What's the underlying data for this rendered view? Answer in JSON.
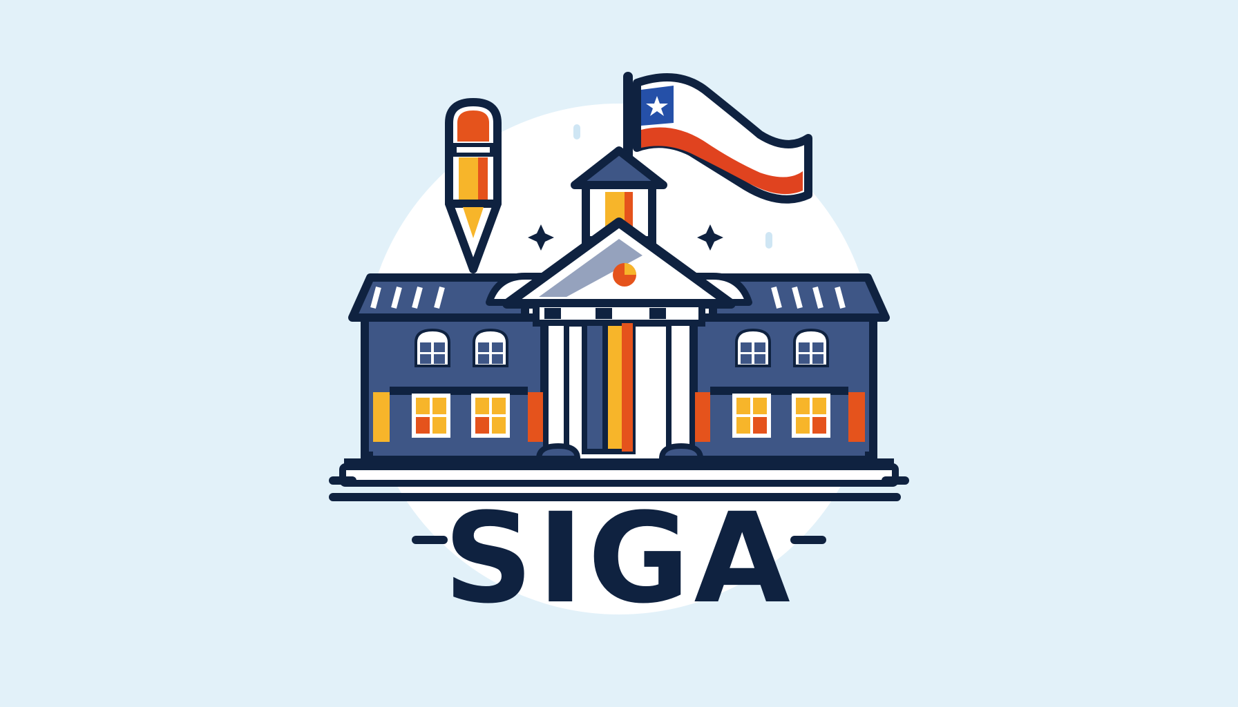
{
  "brand": {
    "name": "SIGA"
  },
  "colors": {
    "background": "#e2f1f9",
    "circle": "#ffffff",
    "navy": "#0f2240",
    "wall_blue": "#3e5686",
    "orange": "#e5531c",
    "yellow": "#f7b52a",
    "flag_blue": "#2550a8",
    "flag_red": "#e0431f",
    "white": "#ffffff"
  },
  "icons": {
    "building": "school-building-icon",
    "flag": "chile-flag-icon",
    "pencil": "pencil-icon",
    "sparkles": "sparkle-icon"
  }
}
